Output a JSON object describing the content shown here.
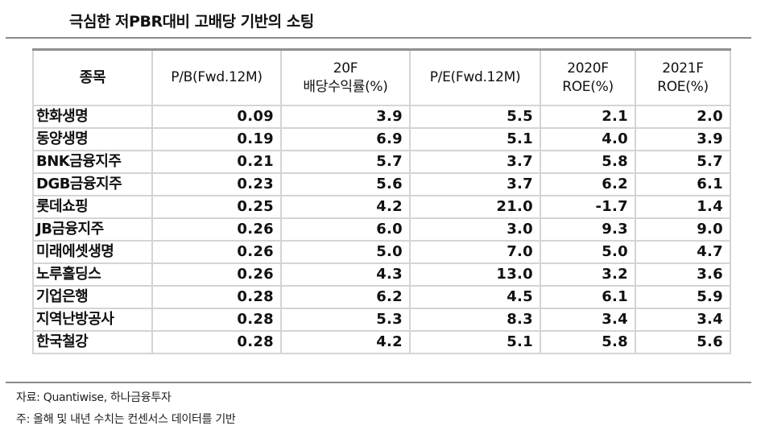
{
  "title": "극심한 저PBR대비 고배당 기반의 소팅",
  "table": {
    "headers": [
      {
        "line1": "종목",
        "line2": ""
      },
      {
        "line1": "P/B(Fwd.12M)",
        "line2": ""
      },
      {
        "line1": "20F",
        "line2": "배당수익률(%)"
      },
      {
        "line1": "P/E(Fwd.12M)",
        "line2": ""
      },
      {
        "line1": "2020F",
        "line2": "ROE(%)"
      },
      {
        "line1": "2021F",
        "line2": "ROE(%)"
      }
    ],
    "rows": [
      {
        "name": "한화생명",
        "pb": "0.09",
        "div": "3.9",
        "pe": "5.5",
        "roe20": "2.1",
        "roe21": "2.0"
      },
      {
        "name": "동양생명",
        "pb": "0.19",
        "div": "6.9",
        "pe": "5.1",
        "roe20": "4.0",
        "roe21": "3.9"
      },
      {
        "name": "BNK금융지주",
        "pb": "0.21",
        "div": "5.7",
        "pe": "3.7",
        "roe20": "5.8",
        "roe21": "5.7"
      },
      {
        "name": "DGB금융지주",
        "pb": "0.23",
        "div": "5.6",
        "pe": "3.7",
        "roe20": "6.2",
        "roe21": "6.1"
      },
      {
        "name": "롯데쇼핑",
        "pb": "0.25",
        "div": "4.2",
        "pe": "21.0",
        "roe20": "-1.7",
        "roe21": "1.4"
      },
      {
        "name": "JB금융지주",
        "pb": "0.26",
        "div": "6.0",
        "pe": "3.0",
        "roe20": "9.3",
        "roe21": "9.0"
      },
      {
        "name": "미래에셋생명",
        "pb": "0.26",
        "div": "5.0",
        "pe": "7.0",
        "roe20": "5.0",
        "roe21": "4.7"
      },
      {
        "name": "노루홀딩스",
        "pb": "0.26",
        "div": "4.3",
        "pe": "13.0",
        "roe20": "3.2",
        "roe21": "3.6"
      },
      {
        "name": "기업은행",
        "pb": "0.28",
        "div": "6.2",
        "pe": "4.5",
        "roe20": "6.1",
        "roe21": "5.9"
      },
      {
        "name": "지역난방공사",
        "pb": "0.28",
        "div": "5.3",
        "pe": "8.3",
        "roe20": "3.4",
        "roe21": "3.4"
      },
      {
        "name": "한국철강",
        "pb": "0.28",
        "div": "4.2",
        "pe": "5.1",
        "roe20": "5.8",
        "roe21": "5.6"
      }
    ]
  },
  "notes": {
    "source": "자료: Quantiwise, 하나금융투자",
    "footnote": "주: 올해 및 내년 수치는 컨센서스 데이터를 기반"
  },
  "colors": {
    "rule": "#8a8a8a",
    "table_top_border": "#8f8f8f",
    "grid": "#d4d4d4",
    "text": "#111111"
  }
}
